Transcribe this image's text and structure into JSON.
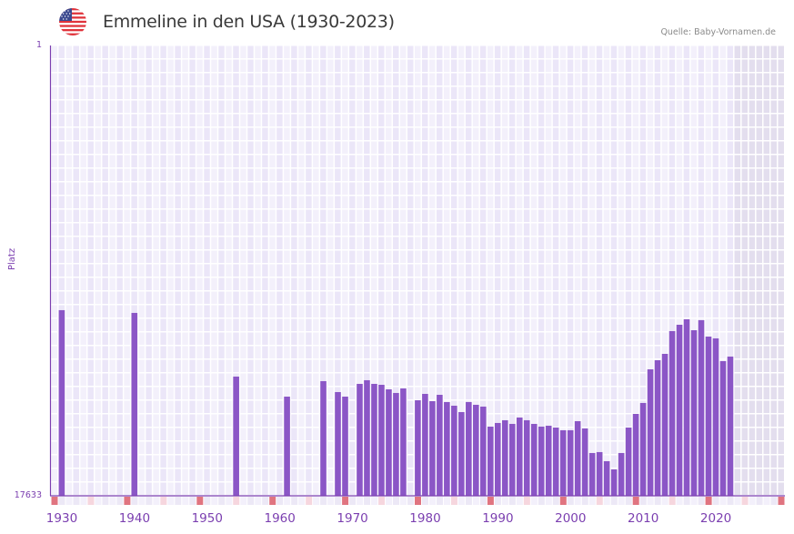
{
  "header": {
    "title": "Emmeline in den USA (1930-2023)",
    "source": "Quelle: Baby-Vornamen.de",
    "flag_icon": "us-flag-icon"
  },
  "colors": {
    "bar": "#8b56c6",
    "axis": "#7b3fb0",
    "grid_bg_a": "#f3f0fb",
    "grid_bg_b": "#ebe6f8",
    "future_bg": "#e3deee",
    "decade_marker": "#e07480",
    "half_decade_marker": "#f6d6de"
  },
  "chart_data": {
    "type": "bar",
    "title": "Emmeline in den USA (1930-2023)",
    "xlabel": "",
    "ylabel": "Platz",
    "y_inverted": true,
    "ylim": [
      1,
      17633
    ],
    "ytick_labels": [
      "1",
      "17633"
    ],
    "xlim": [
      1929,
      2029
    ],
    "xtick_labels": [
      "1930",
      "1940",
      "1950",
      "1960",
      "1970",
      "1980",
      "1990",
      "2000",
      "2010",
      "2020"
    ],
    "shaded_from_year": 2023,
    "grid": true,
    "x": [
      1930,
      1940,
      1954,
      1961,
      1966,
      1968,
      1969,
      1971,
      1972,
      1973,
      1974,
      1975,
      1976,
      1977,
      1979,
      1980,
      1981,
      1982,
      1983,
      1984,
      1985,
      1986,
      1987,
      1988,
      1989,
      1990,
      1991,
      1992,
      1993,
      1994,
      1995,
      1996,
      1997,
      1998,
      1999,
      2000,
      2001,
      2002,
      2003,
      2004,
      2005,
      2006,
      2007,
      2008,
      2009,
      2010,
      2011,
      2012,
      2013,
      2014,
      2015,
      2016,
      2017,
      2018,
      2019,
      2020,
      2021,
      2022
    ],
    "values": [
      10365,
      10472,
      12966,
      13750,
      13144,
      13572,
      13750,
      13251,
      13108,
      13251,
      13287,
      13465,
      13607,
      13429,
      13892,
      13643,
      13928,
      13679,
      13963,
      14106,
      14355,
      13963,
      14070,
      14141,
      14925,
      14782,
      14675,
      14818,
      14568,
      14675,
      14818,
      14925,
      14889,
      14960,
      15067,
      15067,
      14711,
      14996,
      15958,
      15922,
      16278,
      16599,
      15958,
      14960,
      14426,
      13999,
      12681,
      12325,
      12076,
      11185,
      10936,
      10722,
      11150,
      10758,
      11399,
      11470,
      12360,
      12182
    ]
  }
}
